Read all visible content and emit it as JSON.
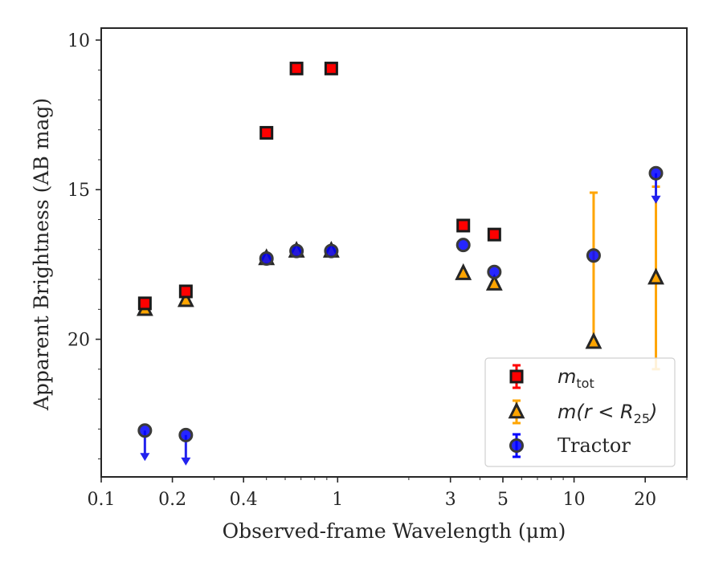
{
  "chart_data": {
    "type": "scatter",
    "xlabel": "Observed-frame Wavelength (μm)",
    "ylabel": "Apparent Brightness (AB mag)",
    "x_scale": "log",
    "xlim": [
      0.1,
      30
    ],
    "ylim": [
      24.6,
      9.6
    ],
    "y_inverted": true,
    "x_ticks": [
      0.1,
      0.2,
      0.4,
      1,
      3,
      5,
      10,
      20
    ],
    "x_tick_labels": [
      "0.1",
      "0.2",
      "0.4",
      "1",
      "3",
      "5",
      "10",
      "20"
    ],
    "y_ticks": [
      10,
      15,
      20
    ],
    "y_tick_labels": [
      "10",
      "15",
      "20"
    ],
    "grid": false,
    "legend_position": "lower-right",
    "series": [
      {
        "key": "mtot",
        "marker": "square",
        "color": "#ff0000",
        "edge_color": "#1a1a1a",
        "legend_math": "m",
        "legend_sub": "tot",
        "points": [
          {
            "x": 0.153,
            "y": 18.8,
            "yerr": 0.08
          },
          {
            "x": 0.228,
            "y": 18.4,
            "yerr": 0.08
          },
          {
            "x": 0.5,
            "y": 13.1
          },
          {
            "x": 0.67,
            "y": 10.95
          },
          {
            "x": 0.94,
            "y": 10.95
          },
          {
            "x": 3.4,
            "y": 16.2
          },
          {
            "x": 4.6,
            "y": 16.5
          }
        ]
      },
      {
        "key": "mr25",
        "marker": "triangle",
        "color": "#ffa500",
        "edge_color": "#262626",
        "legend_math": "m(r < R",
        "legend_sub": "25",
        "legend_math_end": ")",
        "points": [
          {
            "x": 0.153,
            "y": 19.0
          },
          {
            "x": 0.228,
            "y": 18.7
          },
          {
            "x": 0.5,
            "y": 17.3
          },
          {
            "x": 0.67,
            "y": 17.05
          },
          {
            "x": 0.94,
            "y": 17.05
          },
          {
            "x": 3.4,
            "y": 17.8
          },
          {
            "x": 4.6,
            "y": 18.15
          },
          {
            "x": 12.1,
            "y": 20.1,
            "yerr_low": 15.1,
            "yerr_high": 20.1
          },
          {
            "x": 22.2,
            "y": 17.95,
            "yerr_low": 14.9,
            "yerr_high": 21.0
          }
        ]
      },
      {
        "key": "tractor",
        "marker": "circle",
        "color": "#0000ff",
        "edge_color": "#3a3a3a",
        "legend_label": "Tractor",
        "points": [
          {
            "x": 0.153,
            "y": 23.05,
            "upper_limit": true
          },
          {
            "x": 0.228,
            "y": 23.2,
            "upper_limit": true
          },
          {
            "x": 0.5,
            "y": 17.3
          },
          {
            "x": 0.67,
            "y": 17.05
          },
          {
            "x": 0.94,
            "y": 17.05
          },
          {
            "x": 3.4,
            "y": 16.85
          },
          {
            "x": 4.6,
            "y": 17.75
          },
          {
            "x": 12.1,
            "y": 17.2
          },
          {
            "x": 22.2,
            "y": 14.45,
            "upper_limit": true
          }
        ]
      }
    ]
  }
}
